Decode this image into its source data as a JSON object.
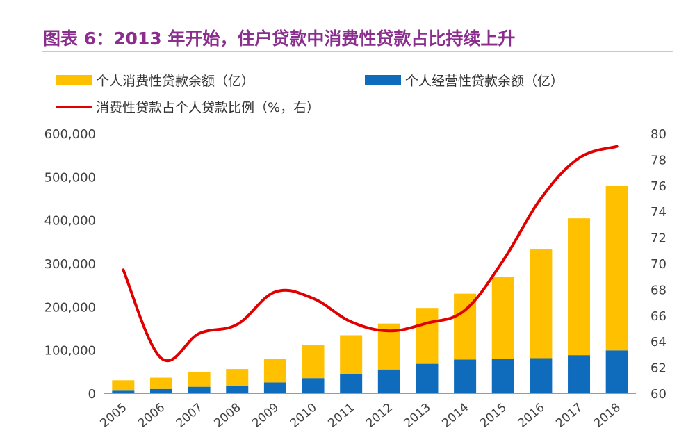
{
  "title": "图表 6：2013 年开始，住户贷款中消费性贷款占比持续上升",
  "colors": {
    "title": "#8b2f8f",
    "consumer_bar": "#ffc000",
    "business_bar": "#0f6cbd",
    "ratio_line": "#e00000",
    "axis_text": "#404040"
  },
  "legend": [
    {
      "label": "个人消费性贷款余额（亿）",
      "kind": "bar",
      "color": "#ffc000"
    },
    {
      "label": "个人经营性贷款余额（亿）",
      "kind": "bar",
      "color": "#0f6cbd"
    },
    {
      "label": "消费性贷款占个人贷款比例（%，右）",
      "kind": "line",
      "color": "#e00000"
    }
  ],
  "chart_data": {
    "type": "bar",
    "stacked": true,
    "categories": [
      "2005",
      "2006",
      "2007",
      "2008",
      "2009",
      "2010",
      "2011",
      "2012",
      "2013",
      "2014",
      "2015",
      "2016",
      "2017",
      "2018"
    ],
    "series": [
      {
        "name": "个人经营性贷款余额（亿）",
        "type": "bar",
        "axis": "left",
        "values": [
          6000,
          10000,
          15000,
          17000,
          25000,
          35000,
          45000,
          55000,
          68000,
          78000,
          80000,
          81000,
          88000,
          99000
        ]
      },
      {
        "name": "个人消费性贷款余额（亿）",
        "type": "bar",
        "axis": "left",
        "values": [
          24000,
          26000,
          34000,
          39000,
          55000,
          76000,
          89000,
          106000,
          129000,
          152000,
          188000,
          251000,
          316000,
          380000
        ]
      },
      {
        "name": "消费性贷款占个人贷款比例（%，右）",
        "type": "line",
        "axis": "right",
        "values": [
          69.5,
          62.7,
          64.6,
          65.3,
          67.8,
          67.3,
          65.5,
          64.8,
          65.4,
          66.4,
          70.2,
          75.0,
          78.1,
          79.0
        ]
      }
    ],
    "y_left": {
      "min": 0,
      "max": 600000,
      "ticks": [
        "0",
        "100,000",
        "200,000",
        "300,000",
        "400,000",
        "500,000",
        "600,000"
      ]
    },
    "y_right": {
      "min": 60,
      "max": 80,
      "ticks": [
        "60",
        "62",
        "64",
        "66",
        "68",
        "70",
        "72",
        "74",
        "76",
        "78",
        "80"
      ]
    },
    "grid": false,
    "legend_position": "top-left"
  }
}
